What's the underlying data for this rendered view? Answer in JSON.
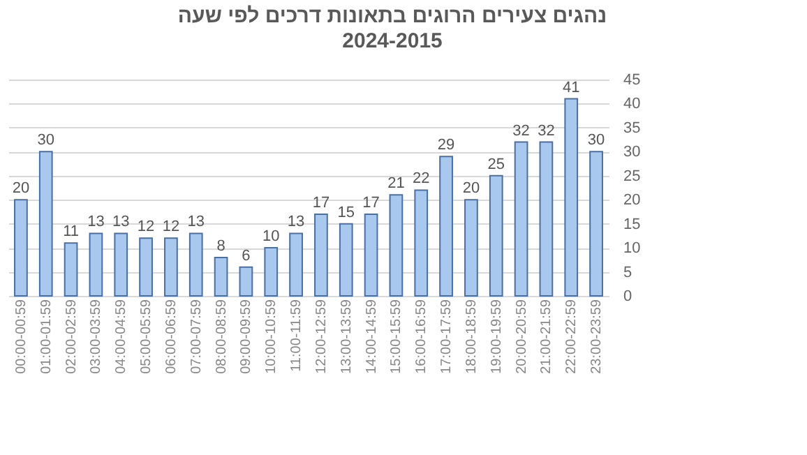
{
  "chart_data": {
    "type": "bar",
    "title": "נהגים צעירים הרוגים בתאונות דרכים לפי שעה",
    "subtitle": "2024-2015",
    "categories": [
      "00:00-00:59",
      "01:00-01:59",
      "02:00-02:59",
      "03:00-03:59",
      "04:00-04:59",
      "05:00-05:59",
      "06:00-06:59",
      "07:00-07:59",
      "08:00-08:59",
      "09:00-09:59",
      "10:00-10:59",
      "11:00-11:59",
      "12:00-12:59",
      "13:00-13:59",
      "14:00-14:59",
      "15:00-15:59",
      "16:00-16:59",
      "17:00-17:59",
      "18:00-18:59",
      "19:00-19:59",
      "20:00-20:59",
      "21:00-21:59",
      "22:00-22:59",
      "23:00-23:59"
    ],
    "values": [
      20,
      30,
      11,
      13,
      13,
      12,
      12,
      13,
      8,
      6,
      10,
      13,
      17,
      15,
      17,
      21,
      22,
      29,
      20,
      25,
      32,
      32,
      41,
      30
    ],
    "color": "#a9c8ee",
    "ylim": [
      0,
      45
    ],
    "yticks": [
      0,
      5,
      10,
      15,
      20,
      25,
      30,
      35,
      40,
      45
    ],
    "grid": "y",
    "data_labels": true
  }
}
